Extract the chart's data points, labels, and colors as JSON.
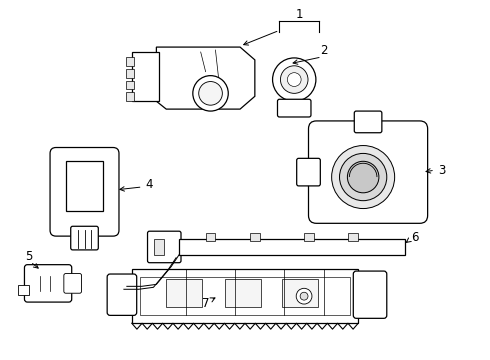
{
  "background_color": "#ffffff",
  "line_color": "#000000",
  "fig_width": 4.9,
  "fig_height": 3.6,
  "dpi": 100,
  "label_fontsize": 8.5
}
